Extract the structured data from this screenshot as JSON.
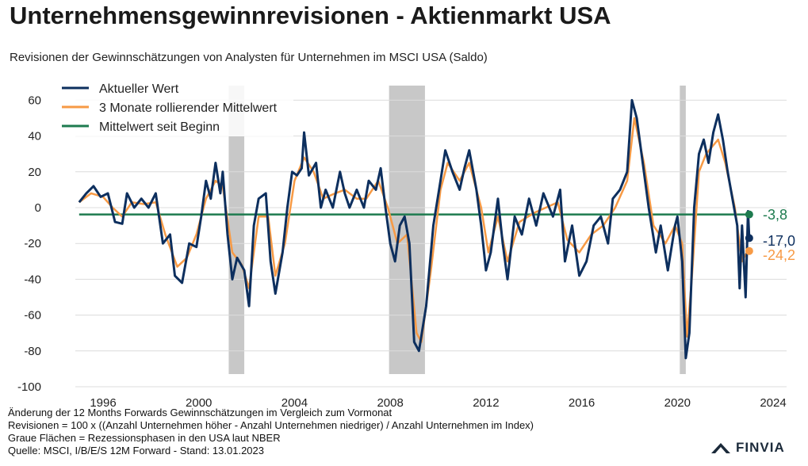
{
  "title": "Unternehmensgewinnrevisionen - Aktienmarkt USA",
  "subtitle": "Revisionen der Gewinnschätzungen von Analysten für Unternehmen im MSCI USA (Saldo)",
  "notes": [
    "Änderung der 12 Months Forwards Gewinnschätzungen im Vergleich zum Vormonat",
    "Revisionen = 100 x ((Anzahl Unternehmen höher - Anzahl Unternehmen niedriger) / Anzahl Unternehmen im Index)",
    "Graue Flächen = Rezessionsphasen in den USA laut NBER",
    "Quelle: MSCI, I/B/E/S 12M Forward - Stand: 13.01.2023"
  ],
  "logo": "FINVIA",
  "chart_data": {
    "type": "line",
    "xlim": [
      1994.5,
      2024.5
    ],
    "ylim": [
      -100,
      65
    ],
    "x_ticks": [
      "1996",
      "2000",
      "2004",
      "2008",
      "2012",
      "2016",
      "2020",
      "2024"
    ],
    "y_ticks": [
      "60",
      "40",
      "20",
      "0",
      "-20",
      "-40",
      "-60",
      "-80",
      "-100"
    ],
    "grid": "horizontal",
    "legend": "top-left",
    "recessions": [
      [
        2001.25,
        2001.9
      ],
      [
        2007.95,
        2009.45
      ],
      [
        2020.1,
        2020.35
      ]
    ],
    "series": [
      {
        "name": "Aktueller Wert",
        "color": "#0d2f5e",
        "last_label": "-17,0",
        "points": [
          [
            1995.0,
            3
          ],
          [
            1995.3,
            8
          ],
          [
            1995.6,
            12
          ],
          [
            1995.9,
            6
          ],
          [
            1996.2,
            8
          ],
          [
            1996.5,
            -8
          ],
          [
            1996.8,
            -9
          ],
          [
            1997.0,
            8
          ],
          [
            1997.3,
            0
          ],
          [
            1997.6,
            5
          ],
          [
            1997.9,
            0
          ],
          [
            1998.2,
            8
          ],
          [
            1998.5,
            -20
          ],
          [
            1998.8,
            -15
          ],
          [
            1999.0,
            -38
          ],
          [
            1999.3,
            -42
          ],
          [
            1999.6,
            -20
          ],
          [
            1999.9,
            -22
          ],
          [
            2000.1,
            -5
          ],
          [
            2000.3,
            15
          ],
          [
            2000.5,
            5
          ],
          [
            2000.7,
            25
          ],
          [
            2000.9,
            8
          ],
          [
            2001.0,
            20
          ],
          [
            2001.2,
            -15
          ],
          [
            2001.4,
            -40
          ],
          [
            2001.6,
            -28
          ],
          [
            2001.9,
            -35
          ],
          [
            2002.1,
            -55
          ],
          [
            2002.3,
            -10
          ],
          [
            2002.5,
            5
          ],
          [
            2002.8,
            8
          ],
          [
            2003.0,
            -30
          ],
          [
            2003.2,
            -48
          ],
          [
            2003.5,
            -25
          ],
          [
            2003.7,
            0
          ],
          [
            2003.9,
            20
          ],
          [
            2004.1,
            18
          ],
          [
            2004.3,
            22
          ],
          [
            2004.4,
            42
          ],
          [
            2004.6,
            18
          ],
          [
            2004.9,
            25
          ],
          [
            2005.1,
            0
          ],
          [
            2005.3,
            10
          ],
          [
            2005.6,
            0
          ],
          [
            2005.9,
            20
          ],
          [
            2006.1,
            8
          ],
          [
            2006.3,
            0
          ],
          [
            2006.6,
            10
          ],
          [
            2006.9,
            0
          ],
          [
            2007.1,
            15
          ],
          [
            2007.4,
            10
          ],
          [
            2007.6,
            22
          ],
          [
            2007.8,
            0
          ],
          [
            2008.0,
            -20
          ],
          [
            2008.2,
            -30
          ],
          [
            2008.4,
            -10
          ],
          [
            2008.6,
            -5
          ],
          [
            2008.8,
            -20
          ],
          [
            2009.0,
            -75
          ],
          [
            2009.2,
            -80
          ],
          [
            2009.5,
            -55
          ],
          [
            2009.8,
            -10
          ],
          [
            2010.1,
            15
          ],
          [
            2010.3,
            32
          ],
          [
            2010.6,
            20
          ],
          [
            2010.9,
            10
          ],
          [
            2011.1,
            22
          ],
          [
            2011.3,
            32
          ],
          [
            2011.6,
            10
          ],
          [
            2011.8,
            -10
          ],
          [
            2012.0,
            -35
          ],
          [
            2012.2,
            -25
          ],
          [
            2012.5,
            5
          ],
          [
            2012.7,
            -20
          ],
          [
            2012.9,
            -40
          ],
          [
            2013.2,
            -5
          ],
          [
            2013.5,
            -15
          ],
          [
            2013.8,
            5
          ],
          [
            2014.1,
            -10
          ],
          [
            2014.4,
            8
          ],
          [
            2014.8,
            -5
          ],
          [
            2015.1,
            10
          ],
          [
            2015.3,
            -30
          ],
          [
            2015.6,
            -10
          ],
          [
            2015.9,
            -38
          ],
          [
            2016.2,
            -30
          ],
          [
            2016.5,
            -10
          ],
          [
            2016.8,
            -5
          ],
          [
            2017.1,
            -20
          ],
          [
            2017.3,
            5
          ],
          [
            2017.6,
            10
          ],
          [
            2017.9,
            20
          ],
          [
            2018.1,
            60
          ],
          [
            2018.3,
            50
          ],
          [
            2018.6,
            20
          ],
          [
            2018.8,
            0
          ],
          [
            2019.1,
            -25
          ],
          [
            2019.3,
            -10
          ],
          [
            2019.6,
            -35
          ],
          [
            2019.9,
            -10
          ],
          [
            2020.0,
            -5
          ],
          [
            2020.2,
            -30
          ],
          [
            2020.35,
            -84
          ],
          [
            2020.5,
            -70
          ],
          [
            2020.7,
            0
          ],
          [
            2020.9,
            30
          ],
          [
            2021.1,
            38
          ],
          [
            2021.3,
            25
          ],
          [
            2021.5,
            42
          ],
          [
            2021.7,
            52
          ],
          [
            2021.9,
            38
          ],
          [
            2022.1,
            20
          ],
          [
            2022.3,
            5
          ],
          [
            2022.5,
            -10
          ],
          [
            2022.6,
            -45
          ],
          [
            2022.7,
            -10
          ],
          [
            2022.85,
            -50
          ],
          [
            2022.95,
            -2
          ],
          [
            2023.0,
            -17
          ]
        ]
      },
      {
        "name": "3 Monate rollierender Mittelwert",
        "color": "#f79a45",
        "last_label": "-24,2",
        "points": [
          [
            1995.0,
            3
          ],
          [
            1995.5,
            8
          ],
          [
            1996.0,
            6
          ],
          [
            1996.4,
            0
          ],
          [
            1996.8,
            -5
          ],
          [
            1997.2,
            3
          ],
          [
            1997.7,
            2
          ],
          [
            1998.2,
            3
          ],
          [
            1998.6,
            -15
          ],
          [
            1999.1,
            -33
          ],
          [
            1999.5,
            -28
          ],
          [
            1999.9,
            -15
          ],
          [
            2000.3,
            5
          ],
          [
            2000.7,
            15
          ],
          [
            2001.0,
            12
          ],
          [
            2001.4,
            -25
          ],
          [
            2001.8,
            -32
          ],
          [
            2002.1,
            -45
          ],
          [
            2002.5,
            -5
          ],
          [
            2002.9,
            -5
          ],
          [
            2003.2,
            -38
          ],
          [
            2003.6,
            -20
          ],
          [
            2004.0,
            15
          ],
          [
            2004.4,
            28
          ],
          [
            2004.8,
            20
          ],
          [
            2005.2,
            5
          ],
          [
            2005.7,
            8
          ],
          [
            2006.1,
            10
          ],
          [
            2006.6,
            5
          ],
          [
            2007.0,
            5
          ],
          [
            2007.5,
            15
          ],
          [
            2007.9,
            0
          ],
          [
            2008.3,
            -20
          ],
          [
            2008.7,
            -15
          ],
          [
            2009.1,
            -70
          ],
          [
            2009.3,
            -75
          ],
          [
            2009.7,
            -35
          ],
          [
            2010.1,
            10
          ],
          [
            2010.4,
            25
          ],
          [
            2010.9,
            15
          ],
          [
            2011.3,
            25
          ],
          [
            2011.8,
            0
          ],
          [
            2012.1,
            -25
          ],
          [
            2012.5,
            -5
          ],
          [
            2012.9,
            -30
          ],
          [
            2013.4,
            -8
          ],
          [
            2014.0,
            -3
          ],
          [
            2014.5,
            0
          ],
          [
            2015.0,
            3
          ],
          [
            2015.4,
            -18
          ],
          [
            2015.9,
            -25
          ],
          [
            2016.4,
            -15
          ],
          [
            2016.9,
            -10
          ],
          [
            2017.4,
            0
          ],
          [
            2017.9,
            15
          ],
          [
            2018.2,
            50
          ],
          [
            2018.6,
            25
          ],
          [
            2019.0,
            -10
          ],
          [
            2019.5,
            -20
          ],
          [
            2019.9,
            -10
          ],
          [
            2020.2,
            -20
          ],
          [
            2020.4,
            -72
          ],
          [
            2020.6,
            -40
          ],
          [
            2020.9,
            20
          ],
          [
            2021.2,
            30
          ],
          [
            2021.7,
            38
          ],
          [
            2022.0,
            25
          ],
          [
            2022.4,
            0
          ],
          [
            2022.7,
            -30
          ],
          [
            2022.9,
            -25
          ],
          [
            2023.0,
            -24.2
          ]
        ]
      },
      {
        "name": "Mittelwert seit Beginn",
        "color": "#1e7b4f",
        "last_label": "-3,8",
        "points": [
          [
            1995.0,
            -3.8
          ],
          [
            2023.0,
            -3.8
          ]
        ]
      }
    ]
  }
}
